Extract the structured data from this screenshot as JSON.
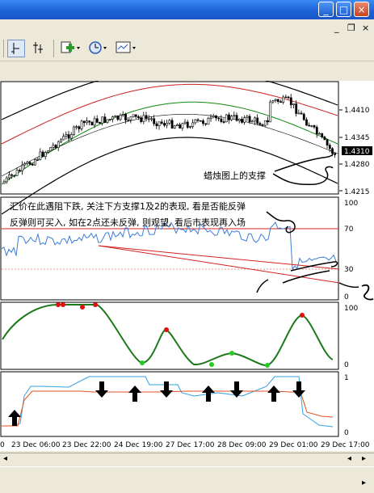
{
  "window": {
    "minimize_glyph": "_",
    "maximize_glyph": "□",
    "close_glyph": "×",
    "mdi_minimize_glyph": "_",
    "mdi_restore_glyph": "❐",
    "mdi_close_glyph": "×"
  },
  "toolbar": {
    "icons": [
      "line-tool-icon",
      "fibonacci-tool-icon",
      "add-indicator-icon",
      "periods-clock-icon",
      "templates-icon"
    ]
  },
  "price_axis": {
    "ticks": [
      "1.4410",
      "1.4345",
      "1.4280",
      "1.4215"
    ],
    "current_price": "1.4310"
  },
  "annotations": {
    "candle_support_note": "蜡烛图上的支撑",
    "commentary_line1": "汇价在此遇阻下跌, 关注下方支撑1及2的表现, 看是否能反弹",
    "commentary_line2": "反弹则可买入, 如在2点还未反弹, 则观望, 看后市表现再入场",
    "handwritten_1": "1",
    "handwritten_2": "2"
  },
  "rsi_axis": {
    "ticks": [
      "100",
      "70",
      "30",
      "0"
    ]
  },
  "stoch_axis": {
    "ticks": [
      "100",
      "0"
    ]
  },
  "signal_axis": {
    "ticks": [
      "1",
      "0"
    ]
  },
  "time_axis": {
    "labels": [
      "23 Dec 06:00",
      "23 Dec 22:00",
      "24 Dec 19:00",
      "27 Dec 17:00",
      "28 Dec 09:00",
      "29 Dec 01:00",
      "29 Dec 17:00"
    ],
    "left_fragment": "0"
  },
  "colors": {
    "bull_candle": "#ffffff",
    "bear_candle": "#000000",
    "upper_band": "#000000",
    "red_band": "#cc2222",
    "green_band": "#118811",
    "rsi_line": "#3b7dd8",
    "stoch_line": "#1a7a1a",
    "trend_red": "#d42020",
    "signal_red": "#e05020",
    "signal_blue": "#33a0e0"
  },
  "chart_data": {
    "type": "candlestick",
    "instrument_scale": {
      "ylim": [
        1.4185,
        1.446
      ]
    },
    "price_ticks": [
      1.441,
      1.4345,
      1.428,
      1.4215
    ],
    "current_price": 1.431,
    "rsi": {
      "levels": [
        70,
        30
      ],
      "ylim": [
        0,
        100
      ]
    },
    "stochastic": {
      "ylim": [
        0,
        100
      ]
    },
    "signal": {
      "ylim": [
        0,
        1
      ]
    },
    "x_labels": [
      "23 Dec 06:00",
      "23 Dec 22:00",
      "24 Dec 19:00",
      "27 Dec 17:00",
      "28 Dec 09:00",
      "29 Dec 01:00",
      "29 Dec 17:00"
    ]
  }
}
